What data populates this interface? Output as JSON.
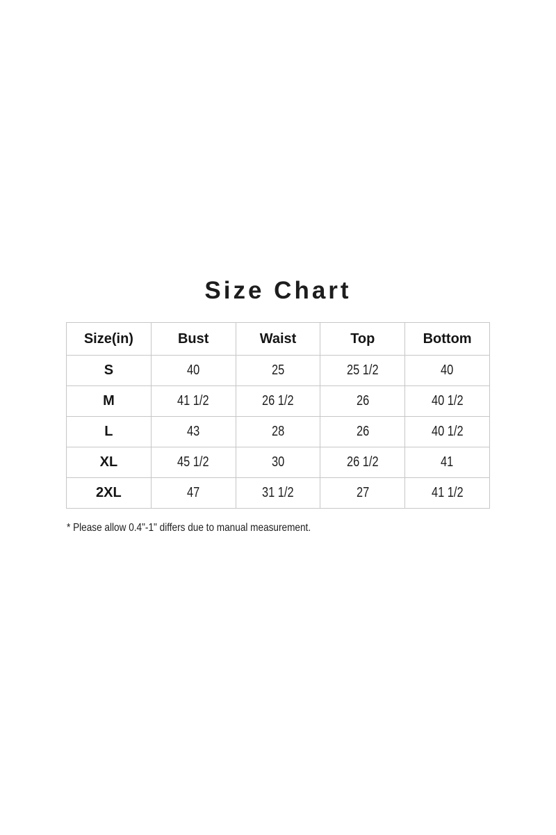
{
  "title": "Size Chart",
  "table": {
    "headers": [
      "Size(in)",
      "Bust",
      "Waist",
      "Top",
      "Bottom"
    ],
    "rows": [
      {
        "cells": [
          "S",
          "40",
          "25",
          "25 1/2",
          "40"
        ]
      },
      {
        "cells": [
          "M",
          "41 1/2",
          "26 1/2",
          "26",
          "40 1/2"
        ]
      },
      {
        "cells": [
          "L",
          "43",
          "28",
          "26",
          "40 1/2"
        ]
      },
      {
        "cells": [
          "XL",
          "45 1/2",
          "30",
          "26 1/2",
          "41"
        ]
      },
      {
        "cells": [
          "2XL",
          "47",
          "31 1/2",
          "27",
          "41 1/2"
        ]
      }
    ]
  },
  "footnote": "* Please allow 0.4\"-1\" differs due to manual measurement."
}
